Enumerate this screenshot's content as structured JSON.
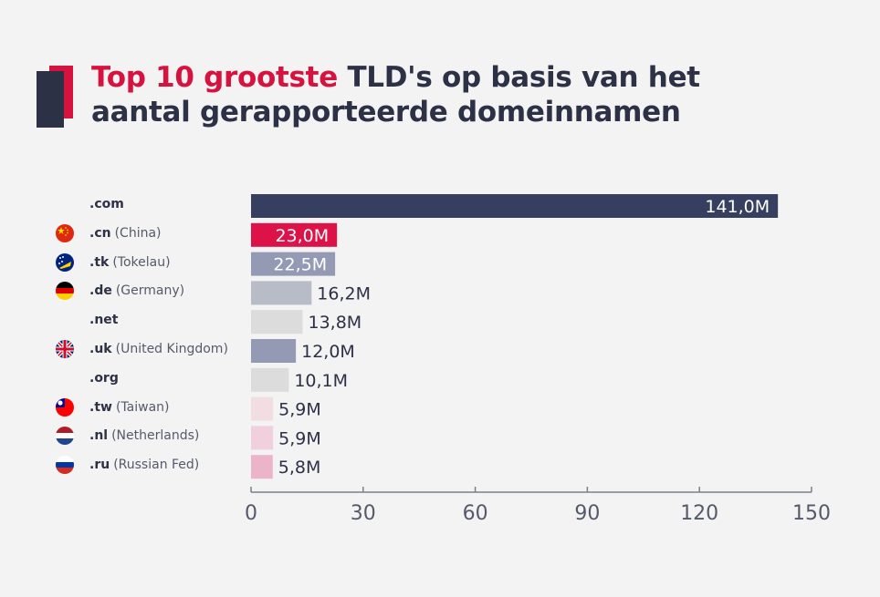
{
  "title": {
    "accent": "Top 10 grootste",
    "rest_line1": "TLD's op basis van het",
    "line2": "aantal gerapporteerde domeinnamen"
  },
  "colors": {
    "accent": "#d6123f",
    "navy": "#363f60",
    "text": "#2c3145",
    "background": "#f3f3f3"
  },
  "chart_data": {
    "type": "bar",
    "orientation": "horizontal",
    "categories": [
      ".com",
      ".cn",
      ".tk",
      ".de",
      ".net",
      ".uk",
      ".org",
      ".tw",
      ".nl",
      ".ru"
    ],
    "countries": [
      "",
      "(China)",
      "(Tokelau)",
      "(Germany)",
      "",
      "(United Kingdom)",
      "",
      "(Taiwan)",
      "(Netherlands)",
      "(Russian Fed)"
    ],
    "flag_icons": [
      "",
      "china-flag-icon",
      "tokelau-flag-icon",
      "germany-flag-icon",
      "",
      "uk-flag-icon",
      "",
      "taiwan-flag-icon",
      "netherlands-flag-icon",
      "russia-flag-icon"
    ],
    "values": [
      141.0,
      23.0,
      22.5,
      16.2,
      13.8,
      12.0,
      10.1,
      5.9,
      5.9,
      5.8
    ],
    "value_labels": [
      "141,0M",
      "23,0M",
      "22,5M",
      "16,2M",
      "13,8M",
      "12,0M",
      "10,1M",
      "5,9M",
      "5,9M",
      "5,8M"
    ],
    "bar_colors": [
      "#363f60",
      "#dc1248",
      "#9499b4",
      "#b8bcc7",
      "#dcdcdc",
      "#9499b4",
      "#dcdcdc",
      "#f2dde3",
      "#f0d0dc",
      "#ebb4c8"
    ],
    "label_inside": [
      true,
      true,
      true,
      false,
      false,
      false,
      false,
      false,
      false,
      false
    ],
    "x_ticks": [
      0,
      30,
      60,
      90,
      120,
      150
    ],
    "xlim": [
      0,
      150
    ],
    "grid": false
  }
}
